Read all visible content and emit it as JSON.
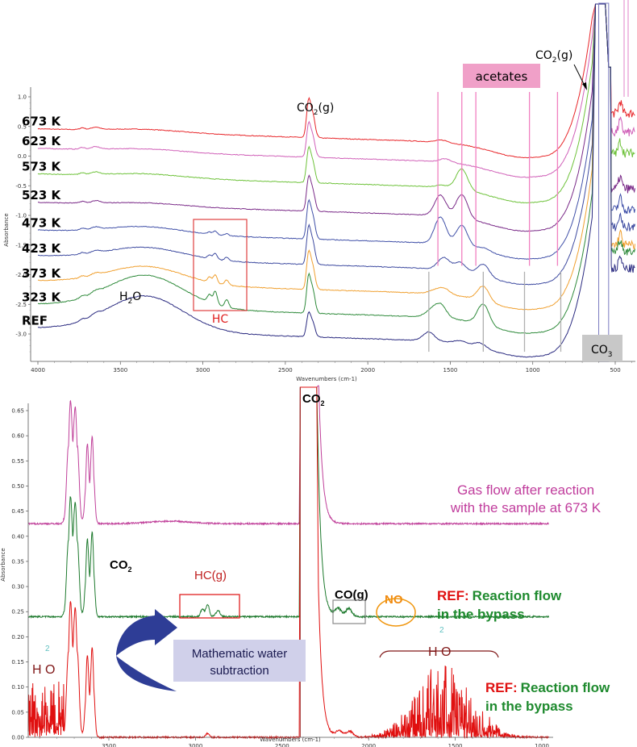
{
  "chart_data": [
    {
      "type": "line",
      "title": "",
      "xlabel": "Wavenumbers (cm-1)",
      "ylabel": "Absorbance",
      "xlim": [
        4000,
        380
      ],
      "ylim": [
        -3.45,
        1.1
      ],
      "x_ticks": [
        4000,
        3500,
        3000,
        2500,
        2000,
        1500,
        1000,
        500
      ],
      "y_ticks": [
        1.0,
        0.5,
        0.0,
        -0.5,
        -1.0,
        -1.5,
        -2.0,
        -2.5,
        -3.0
      ],
      "x_tick_labels": [
        "4000",
        "3500",
        "3000",
        "2500",
        "2000",
        "1500",
        "1000",
        "500"
      ],
      "y_tick_labels": [
        "1.0",
        "0.5",
        "0.0",
        "-0.5",
        "-1.0",
        "-1.5",
        "-2.0",
        "-2.5",
        "-3.0"
      ],
      "grid": false,
      "legend": "none",
      "series": [
        {
          "name": "673 K",
          "color": "#e8262a",
          "baseline": 0.46,
          "co2_peak": 0.55,
          "hc": 0.0,
          "h2o": 0.05,
          "bands": [
            [
              1550,
              0.04
            ],
            [
              1420,
              0.0
            ]
          ],
          "low_end": 0.72
        },
        {
          "name": "623 K",
          "color": "#d060b8",
          "baseline": 0.13,
          "co2_peak": 0.5,
          "hc": 0.0,
          "h2o": 0.05,
          "bands": [
            [
              1530,
              0.06
            ],
            [
              1420,
              0.0
            ]
          ],
          "low_end": 0.4
        },
        {
          "name": "573 K",
          "color": "#6ec23a",
          "baseline": -0.3,
          "co2_peak": 0.5,
          "hc": 0.0,
          "h2o": 0.06,
          "bands": [
            [
              1550,
              0.04
            ],
            [
              1430,
              0.35
            ]
          ],
          "low_end": 0.05
        },
        {
          "name": "523 K",
          "color": "#7a2a88",
          "baseline": -0.78,
          "co2_peak": 0.5,
          "hc": 0.0,
          "h2o": 0.05,
          "bands": [
            [
              1560,
              0.35
            ],
            [
              1430,
              0.4
            ]
          ],
          "low_end": -0.55
        },
        {
          "name": "473 K",
          "color": "#4050a8",
          "baseline": -1.25,
          "co2_peak": 0.55,
          "hc": 0.06,
          "h2o": 0.12,
          "bands": [
            [
              1560,
              0.45
            ],
            [
              1430,
              0.35
            ],
            [
              1300,
              0.05
            ]
          ],
          "low_end": -0.9
        },
        {
          "name": "423 K",
          "color": "#3d4aa0",
          "baseline": -1.68,
          "co2_peak": 0.55,
          "hc": 0.1,
          "h2o": 0.2,
          "bands": [
            [
              1540,
              0.2
            ],
            [
              1440,
              0.15
            ],
            [
              1300,
              0.2
            ]
          ],
          "low_end": -1.2
        },
        {
          "name": "373 K",
          "color": "#f0a030",
          "baseline": -2.1,
          "co2_peak": 0.55,
          "hc": 0.14,
          "h2o": 0.3,
          "bands": [
            [
              1600,
              0.05
            ],
            [
              1540,
              0.1
            ],
            [
              1300,
              0.25
            ]
          ],
          "low_end": -1.5
        },
        {
          "name": "323 K",
          "color": "#2e8a3a",
          "baseline": -2.5,
          "co2_peak": 0.55,
          "hc": 0.22,
          "h2o": 0.55,
          "bands": [
            [
              1620,
              0.1
            ],
            [
              1560,
              0.22
            ],
            [
              1300,
              0.35
            ]
          ],
          "low_end": -1.6
        },
        {
          "name": "REF",
          "color": "#2a2a80",
          "baseline": -2.9,
          "co2_peak": 0.35,
          "hc": 0.0,
          "h2o": 0.6,
          "bands": [
            [
              1630,
              0.15
            ],
            [
              1440,
              0.05
            ],
            [
              1320,
              0.08
            ]
          ],
          "low_end": -1.9
        }
      ],
      "annotations": {
        "co2_gas_label": "CO2(g)",
        "co2_gas_label_2": "CO2(g)",
        "acetates_label": "acetates",
        "h2o_label": "H2O",
        "hc_label": "HC",
        "co3_label": "CO3",
        "acetate_lines_cm1": [
          1575,
          1430,
          1345,
          1020,
          850
        ],
        "carbonate_lines_cm1": [
          1630,
          1300,
          1050,
          830
        ]
      }
    },
    {
      "type": "line",
      "title": "",
      "xlabel": "Wavenumbers (cm-1)",
      "ylabel": "Absorbance",
      "xlim": [
        3965,
        960
      ],
      "ylim": [
        -0.01,
        0.68
      ],
      "x_ticks": [
        3500,
        3000,
        2500,
        2000,
        1500,
        1000
      ],
      "y_ticks": [
        0.65,
        0.6,
        0.55,
        0.5,
        0.45,
        0.4,
        0.35,
        0.3,
        0.25,
        0.2,
        0.15,
        0.1,
        0.05,
        0.0
      ],
      "x_tick_labels": [
        "3500",
        "3000",
        "2500",
        "2000",
        "1500",
        "1000"
      ],
      "y_tick_labels": [
        "0.65",
        "0.60",
        "0.55",
        "0.50",
        "0.45",
        "0.40",
        "0.35",
        "0.30",
        "0.25",
        "0.20",
        "0.15",
        "0.10",
        "0.05",
        "0.00"
      ],
      "grid": false,
      "legend": "none",
      "series": [
        {
          "name": "Gas flow after reaction with the sample at 673 K",
          "color": "#c0409a",
          "baseline": 0.425,
          "co2_3700_max": 0.66,
          "co2_3600_max": 0.6
        },
        {
          "name": "REF: Reaction flow in the bypass (after water subtraction)",
          "color": "#1e7a2e",
          "baseline": 0.24,
          "co2_3700_max": 0.47,
          "co2_3600_max": 0.41,
          "hc_peak": 0.255,
          "co_peak": 0.255
        },
        {
          "name": "REF: Reaction flow in the bypass",
          "color": "#e01010",
          "baseline": 0.0,
          "co2_3700_max": 0.26,
          "co2_3600_max": 0.18,
          "h2o_max": 0.16
        }
      ],
      "annotations": {
        "co2_top": "CO2",
        "co2_left": "CO2",
        "hc_gas": "HC(g)",
        "co_gas": "CO(g)",
        "no": "NO",
        "h2o_left": "H O",
        "h2o_left_sub": "2",
        "h2o_right": "H O",
        "h2o_right_sub": "2",
        "water_subtraction": [
          "Mathematic water",
          "subtraction"
        ],
        "label_gas_flow": [
          "Gas flow after reaction",
          "with the sample at 673 K"
        ],
        "label_ref_1_prefix": "REF:",
        "label_ref_1": [
          "Reaction flow",
          "in the bypass"
        ],
        "label_ref_2_prefix": "REF:",
        "label_ref_2": [
          "Reaction flow",
          "in the bypass"
        ]
      }
    }
  ]
}
